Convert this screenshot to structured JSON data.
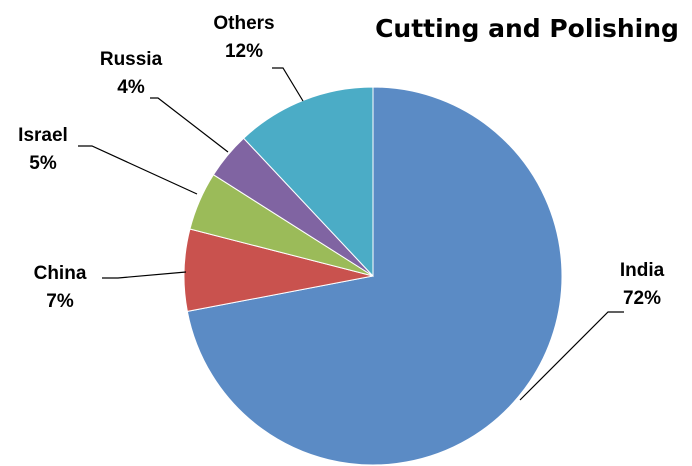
{
  "chart_data": {
    "type": "pie",
    "title": "Cutting and Polishing",
    "slices": [
      {
        "label": "India",
        "value": 72,
        "pct_label": "72%",
        "color": "#5b8bc5"
      },
      {
        "label": "China",
        "value": 7,
        "pct_label": "7%",
        "color": "#c9524e"
      },
      {
        "label": "Israel",
        "value": 5,
        "pct_label": "5%",
        "color": "#9bbb59"
      },
      {
        "label": "Russia",
        "value": 4,
        "pct_label": "4%",
        "color": "#8064a2"
      },
      {
        "label": "Others",
        "value": 12,
        "pct_label": "12%",
        "color": "#4bacc6"
      }
    ],
    "start_angle_deg": 0,
    "direction": "clockwise",
    "legend": "none",
    "labels_outside_with_leader_lines": true
  }
}
